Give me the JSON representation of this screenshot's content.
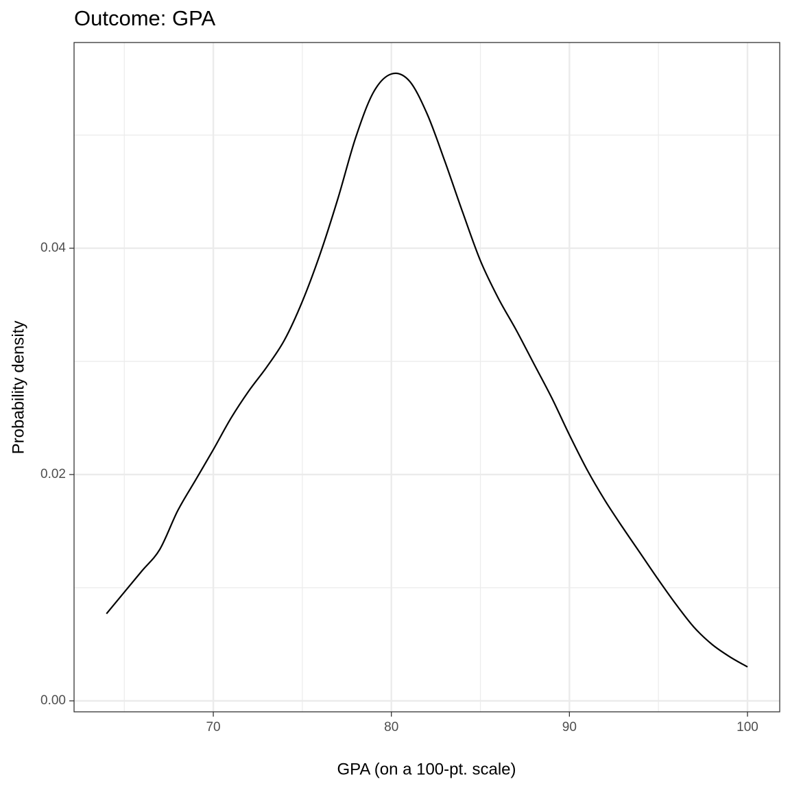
{
  "chart_data": {
    "type": "line",
    "title": "Outcome: GPA",
    "x_label": "GPA (on a 100-pt. scale)",
    "y_label": "Probability density",
    "x": [
      64,
      65,
      66,
      67,
      68,
      69,
      70,
      71,
      72,
      73,
      74,
      75,
      76,
      77,
      78,
      79,
      80,
      81,
      82,
      83,
      84,
      85,
      86,
      87,
      88,
      89,
      90,
      91,
      92,
      93,
      94,
      95,
      96,
      97,
      98,
      99,
      100
    ],
    "series": [
      {
        "color": "#000000",
        "values": [
          0.0077,
          0.0096,
          0.0115,
          0.0134,
          0.0168,
          0.0195,
          0.0222,
          0.025,
          0.0274,
          0.0295,
          0.0319,
          0.0353,
          0.0395,
          0.0444,
          0.0498,
          0.0538,
          0.0554,
          0.0548,
          0.0519,
          0.0477,
          0.0432,
          0.0389,
          0.0356,
          0.0328,
          0.0298,
          0.0268,
          0.0235,
          0.0204,
          0.0177,
          0.0153,
          0.013,
          0.0107,
          0.0085,
          0.0065,
          0.005,
          0.0039,
          0.003
        ]
      }
    ],
    "xlim": [
      62.18,
      101.81
    ],
    "ylim": [
      -0.00097,
      0.05818
    ],
    "xticks": [
      70,
      80,
      90,
      100
    ],
    "yticks": [
      {
        "value": 0,
        "label": "0.00"
      },
      0.02,
      0.04
    ],
    "x_minor_grid": [
      65,
      75,
      85,
      95
    ],
    "y_minor_grid": [
      0.01,
      0.03,
      0.05
    ],
    "grid": true
  }
}
